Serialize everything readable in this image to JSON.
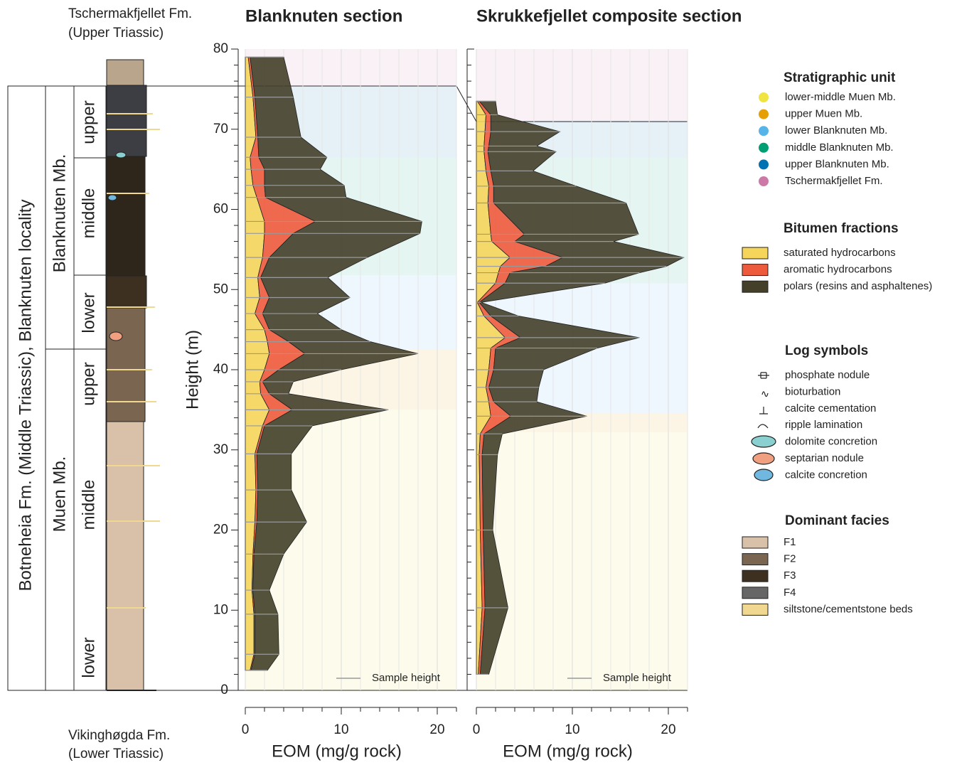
{
  "stratigraphic_column": {
    "top_formation": [
      "Tschermakfjellet Fm.",
      "(Upper Triassic)"
    ],
    "bottom_formation": [
      "Vikinghøgda Fm.",
      "(Lower Triassic)"
    ],
    "formation": "Botneheia Fm. (Middle Triassic), Blanknuten locality",
    "members": [
      "Blanknuten Mb.",
      "Muen Mb."
    ],
    "subunits": [
      "upper",
      "middle",
      "lower",
      "upper",
      "middle",
      "lower"
    ]
  },
  "chart_data": [
    {
      "type": "area",
      "orientation": "horizontal",
      "title": "Blanknuten section",
      "x_label": "EOM (mg/g rock)",
      "y_label": "Height (m)",
      "xlim": [
        0,
        22
      ],
      "xticks": [
        0,
        10,
        20
      ],
      "xminor": [
        2,
        4,
        6,
        8,
        12,
        14,
        16,
        18,
        22
      ],
      "ylim": [
        0,
        80
      ],
      "yticks": [
        0,
        10,
        20,
        30,
        40,
        50,
        60,
        70,
        80
      ],
      "yminor": [
        2,
        4,
        6,
        8,
        12,
        14,
        16,
        18,
        22,
        24,
        26,
        28,
        32,
        34,
        36,
        38,
        42,
        44,
        46,
        48,
        52,
        54,
        56,
        58,
        62,
        64,
        66,
        68,
        72,
        74,
        76,
        78
      ],
      "grid": true,
      "sample_legend": "Sample height",
      "y": [
        79,
        74,
        69,
        66.5,
        65,
        63,
        61.5,
        58.5,
        57,
        54,
        51.5,
        49,
        47,
        45,
        43.5,
        42,
        40,
        38.5,
        37,
        35,
        33,
        29.5,
        25,
        21,
        17,
        12.5,
        9.5,
        4.5,
        2.5
      ],
      "series": [
        {
          "name": "saturated hydrocarbons",
          "color": "#f5d55a",
          "values": [
            0.3,
            0.8,
            1.1,
            0.5,
            0.6,
            0.8,
            1.2,
            2.0,
            2.0,
            1.8,
            1.3,
            1.5,
            1.0,
            2.0,
            2.3,
            2.5,
            2.0,
            1.5,
            1.6,
            2.5,
            1.8,
            1.0,
            1.1,
            1.0,
            0.8,
            0.7,
            0.9,
            0.9,
            0.5
          ]
        },
        {
          "name": "aromatic hydrocarbons",
          "color": "#ee5a3c",
          "values": [
            0.2,
            0.2,
            0.2,
            0.9,
            1.4,
            1.2,
            0.9,
            5.3,
            3.0,
            0.7,
            0.3,
            1.0,
            0.8,
            0.5,
            2.2,
            3.7,
            1.5,
            0.3,
            0.9,
            2.4,
            0.2,
            0.2,
            0.2,
            0.2,
            0.1,
            0.1,
            0.1,
            0.1,
            0.1
          ]
        },
        {
          "name": "polars (resins and asphaltenes)",
          "color": "#433f29",
          "values": [
            3.5,
            4.0,
            4.5,
            7.1,
            5.8,
            8.3,
            8.4,
            11.1,
            13.2,
            10.2,
            7.0,
            8.4,
            5.7,
            7.5,
            8.5,
            11.8,
            6.5,
            3.2,
            2.0,
            10.0,
            5.0,
            3.6,
            3.5,
            5.2,
            3.1,
            1.7,
            2.4,
            2.5,
            1.7
          ]
        }
      ],
      "zones": [
        [
          0,
          35
        ],
        [
          35,
          42.5
        ],
        [
          42.5,
          51.8
        ],
        [
          51.8,
          66.5
        ],
        [
          66.5,
          75.3
        ],
        [
          75.3,
          80
        ]
      ]
    },
    {
      "type": "area",
      "orientation": "horizontal",
      "title": "Skrukkefjellet composite section",
      "x_label": "EOM (mg/g rock)",
      "xlim": [
        0,
        22
      ],
      "xticks": [
        0,
        10,
        20
      ],
      "xminor": [
        2,
        4,
        6,
        8,
        12,
        14,
        16,
        18,
        22
      ],
      "ylim": [
        0,
        80
      ],
      "yticks": [
        0,
        10,
        20,
        30,
        40,
        50,
        60,
        70,
        80
      ],
      "yminor": [
        2,
        4,
        6,
        8,
        12,
        14,
        16,
        18,
        22,
        24,
        26,
        28,
        32,
        34,
        36,
        38,
        42,
        44,
        46,
        48,
        52,
        54,
        56,
        58,
        62,
        64,
        66,
        68,
        72,
        74,
        76,
        78
      ],
      "grid": true,
      "sample_legend": "Sample height",
      "y": [
        73.5,
        71.8,
        69.7,
        67.9,
        67.2,
        64.8,
        62.9,
        60.8,
        56.9,
        56.0,
        54.0,
        52.9,
        52.1,
        50.8,
        48.4,
        46.7,
        44.0,
        42.7,
        40.0,
        37.8,
        36.0,
        34.2,
        32.0,
        29.4,
        20.0,
        10.3,
        2.0
      ],
      "series": [
        {
          "name": "saturated hydrocarbons",
          "color": "#f5d55a",
          "values": [
            0.1,
            1.0,
            0.9,
            0.8,
            0.8,
            1.0,
            1.3,
            1.2,
            1.5,
            1.6,
            3.5,
            2.5,
            2.3,
            2.0,
            0.1,
            0.8,
            3.0,
            1.5,
            1.3,
            1.0,
            1.3,
            1.5,
            0.4,
            0.3,
            0.4,
            0.6,
            0.2
          ]
        },
        {
          "name": "aromatic hydrocarbons",
          "color": "#ee5a3c",
          "values": [
            0.2,
            0.5,
            0.6,
            0.5,
            0.4,
            0.5,
            0.5,
            0.6,
            3.5,
            2.4,
            5.5,
            4.7,
            1.2,
            1.0,
            0.2,
            0.7,
            1.6,
            0.5,
            0.5,
            0.3,
            0.5,
            2.1,
            0.4,
            0.3,
            0.3,
            0.3,
            0.2
          ]
        },
        {
          "name": "polars (resins and asphaltenes)",
          "color": "#433f29",
          "values": [
            1.7,
            0.7,
            7.2,
            5.0,
            7.1,
            4.4,
            8.6,
            13.8,
            11.9,
            10.3,
            12.6,
            12.6,
            13.5,
            10.4,
            0.2,
            2.9,
            12.4,
            10.6,
            5.2,
            5.2,
            4.5,
            7.9,
            1.9,
            1.6,
            1.0,
            2.4,
            0.9
          ]
        }
      ],
      "zones": [
        [
          0,
          32.2
        ],
        [
          32.2,
          34.6
        ],
        [
          34.6,
          50.8
        ],
        [
          50.8,
          66.5
        ],
        [
          66.5,
          71
        ],
        [
          71,
          80
        ]
      ]
    }
  ],
  "legend": {
    "stratigraphic_unit_title": "Stratigraphic unit",
    "stratigraphic_units": [
      {
        "name": "lower-middle Muen Mb.",
        "color": "#f0e442"
      },
      {
        "name": "upper Muen Mb.",
        "color": "#e69f00"
      },
      {
        "name": "lower Blanknuten Mb.",
        "color": "#56b4e9"
      },
      {
        "name": "middle Blanknuten Mb.",
        "color": "#009e73"
      },
      {
        "name": "upper Blanknuten Mb.",
        "color": "#0072b2"
      },
      {
        "name": "Tschermakfjellet Fm.",
        "color": "#cc79a7"
      }
    ],
    "bitumen_title": "Bitumen fractions",
    "log_symbols_title": "Log symbols",
    "log_symbols": [
      "phosphate nodule",
      "bioturbation",
      "calcite cementation",
      "ripple lamination",
      "dolomite concretion",
      "septarian nodule",
      "calcite concretion"
    ],
    "facies_title": "Dominant facies",
    "facies": [
      {
        "name": "F1",
        "color": "#d9c0a8"
      },
      {
        "name": "F2",
        "color": "#7a6550"
      },
      {
        "name": "F3",
        "color": "#3d3020"
      },
      {
        "name": "F4",
        "color": "#666666"
      },
      {
        "name": "siltstone/cementstone beds",
        "color": "#f0d890"
      }
    ]
  }
}
